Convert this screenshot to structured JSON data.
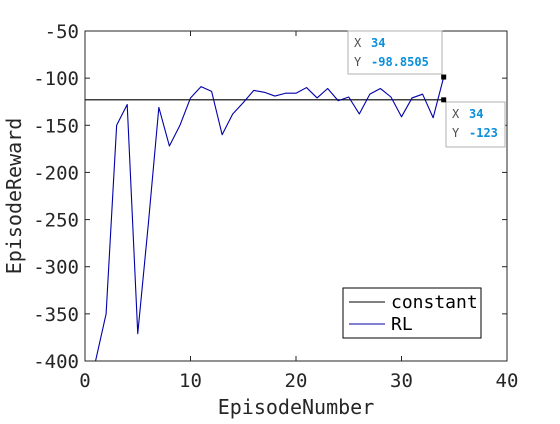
{
  "chart_data": {
    "type": "line",
    "title": "",
    "xlabel": "EpisodeNumber",
    "ylabel": "EpisodeReward",
    "xlim": [
      0,
      40
    ],
    "ylim": [
      -400,
      -50
    ],
    "xticks": [
      0,
      10,
      20,
      30,
      40
    ],
    "yticks": [
      -400,
      -350,
      -300,
      -250,
      -200,
      -150,
      -100,
      -50
    ],
    "grid": false,
    "legend_position": "bottom-right",
    "series": [
      {
        "name": "constant",
        "color": "#000000",
        "x": [
          0,
          34
        ],
        "y": [
          -123,
          -123
        ]
      },
      {
        "name": "RL",
        "color": "#0000aa",
        "x": [
          1,
          2,
          3,
          4,
          5,
          6,
          7,
          8,
          9,
          10,
          11,
          12,
          13,
          14,
          15,
          16,
          17,
          18,
          19,
          20,
          21,
          22,
          23,
          24,
          25,
          26,
          27,
          28,
          29,
          30,
          31,
          32,
          33,
          34
        ],
        "y": [
          -400,
          -350,
          -150,
          -128,
          -371,
          -255,
          -131,
          -172,
          -150,
          -121,
          -109,
          -114,
          -160,
          -138,
          -126,
          -113,
          -115,
          -119,
          -116,
          -116,
          -110,
          -121,
          -111,
          -124,
          -120,
          -138,
          -117,
          -111,
          -120,
          -141,
          -121,
          -117,
          -142,
          -98.8505
        ]
      }
    ],
    "datatips": [
      {
        "series": "RL",
        "x_label": "X",
        "y_label": "Y",
        "x_value": "34",
        "y_value": "-98.8505"
      },
      {
        "series": "constant",
        "x_label": "X",
        "y_label": "Y",
        "x_value": "34",
        "y_value": "-123"
      }
    ]
  }
}
